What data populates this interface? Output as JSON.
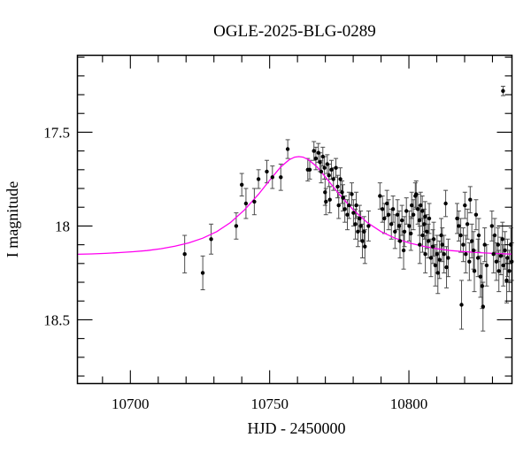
{
  "figure": {
    "title": "OGLE-2025-BLG-0289"
  },
  "chart_data": {
    "type": "scatter",
    "title": "OGLE-2025-BLG-0289",
    "xlabel": "HJD - 2450000",
    "ylabel": "I magnitude",
    "xlim": [
      10681,
      10837
    ],
    "ylim": [
      17.09,
      18.84
    ],
    "y_axis_direction": "inverted-magnitude",
    "grid": false,
    "legend": null,
    "x_ticks_major": [
      10700,
      10750,
      10800
    ],
    "x_ticks_minor": [
      10690,
      10710,
      10720,
      10730,
      10740,
      10760,
      10770,
      10780,
      10790,
      10810,
      10820,
      10830
    ],
    "y_ticks_major": [
      17.5,
      18,
      18.5
    ],
    "y_ticks_minor": [
      17.1,
      17.2,
      17.3,
      17.4,
      17.6,
      17.7,
      17.8,
      17.9,
      18.1,
      18.2,
      18.3,
      18.4,
      18.6,
      18.7,
      18.8
    ],
    "colors": {
      "frame": "#000000",
      "marker": "#000000",
      "error_bar": "#4d4d4d",
      "model_curve": "#ff00f0",
      "background": "#ffffff",
      "text": "#000000"
    },
    "model": {
      "name": "point-lens fit",
      "baseline_mag": 18.16,
      "peak_mag": 17.63,
      "t0": 10760.5
    },
    "model_curve": [
      [
        10681,
        18.151
      ],
      [
        10686,
        18.149
      ],
      [
        10691,
        18.146
      ],
      [
        10696,
        18.142
      ],
      [
        10701,
        18.137
      ],
      [
        10706,
        18.131
      ],
      [
        10711,
        18.121
      ],
      [
        10716,
        18.108
      ],
      [
        10721,
        18.09
      ],
      [
        10726,
        18.065
      ],
      [
        10731,
        18.03
      ],
      [
        10736,
        17.981
      ],
      [
        10741,
        17.914
      ],
      [
        10746,
        17.831
      ],
      [
        10751,
        17.738
      ],
      [
        10754,
        17.685
      ],
      [
        10757,
        17.647
      ],
      [
        10759,
        17.633
      ],
      [
        10760.5,
        17.63
      ],
      [
        10762,
        17.633
      ],
      [
        10764,
        17.647
      ],
      [
        10767,
        17.685
      ],
      [
        10770,
        17.738
      ],
      [
        10775,
        17.831
      ],
      [
        10780,
        17.914
      ],
      [
        10785,
        17.981
      ],
      [
        10790,
        18.03
      ],
      [
        10795,
        18.065
      ],
      [
        10800,
        18.09
      ],
      [
        10805,
        18.108
      ],
      [
        10810,
        18.121
      ],
      [
        10815,
        18.131
      ],
      [
        10820,
        18.137
      ],
      [
        10825,
        18.142
      ],
      [
        10830,
        18.146
      ],
      [
        10835,
        18.149
      ],
      [
        10837,
        18.15
      ]
    ],
    "points": [
      [
        10719.5,
        18.15,
        0.1
      ],
      [
        10726.0,
        18.25,
        0.09
      ],
      [
        10729.0,
        18.07,
        0.08
      ],
      [
        10738.0,
        18.0,
        0.07
      ],
      [
        10740.0,
        17.78,
        0.06
      ],
      [
        10741.5,
        17.88,
        0.08
      ],
      [
        10744.5,
        17.87,
        0.07
      ],
      [
        10746.0,
        17.75,
        0.05
      ],
      [
        10749.0,
        17.71,
        0.06
      ],
      [
        10751.0,
        17.74,
        0.06
      ],
      [
        10754.0,
        17.74,
        0.07
      ],
      [
        10756.5,
        17.59,
        0.05
      ],
      [
        10763.7,
        17.7,
        0.06
      ],
      [
        10764.4,
        17.7,
        0.05
      ],
      [
        10765.9,
        17.6,
        0.05
      ],
      [
        10766.6,
        17.64,
        0.06
      ],
      [
        10767.5,
        17.61,
        0.05
      ],
      [
        10768.1,
        17.66,
        0.05
      ],
      [
        10768.5,
        17.71,
        0.06
      ],
      [
        10769.1,
        17.63,
        0.05
      ],
      [
        10769.7,
        17.69,
        0.06
      ],
      [
        10769.9,
        17.82,
        0.07
      ],
      [
        10770.2,
        17.87,
        0.07
      ],
      [
        10770.7,
        17.67,
        0.05
      ],
      [
        10771.3,
        17.73,
        0.06
      ],
      [
        10771.6,
        17.86,
        0.07
      ],
      [
        10772.2,
        17.7,
        0.05
      ],
      [
        10772.9,
        17.75,
        0.06
      ],
      [
        10773.8,
        17.69,
        0.05
      ],
      [
        10774.4,
        17.79,
        0.06
      ],
      [
        10774.8,
        17.89,
        0.07
      ],
      [
        10775.4,
        17.75,
        0.06
      ],
      [
        10776.0,
        17.82,
        0.06
      ],
      [
        10776.3,
        17.85,
        0.07
      ],
      [
        10777.0,
        17.91,
        0.07
      ],
      [
        10777.9,
        17.94,
        0.08
      ],
      [
        10778.5,
        17.89,
        0.07
      ],
      [
        10779.5,
        17.83,
        0.06
      ],
      [
        10780.1,
        17.93,
        0.07
      ],
      [
        10780.8,
        17.99,
        0.08
      ],
      [
        10781.1,
        17.89,
        0.07
      ],
      [
        10781.7,
        18.03,
        0.08
      ],
      [
        10782.3,
        17.96,
        0.07
      ],
      [
        10782.7,
        18.0,
        0.08
      ],
      [
        10783.3,
        18.08,
        0.09
      ],
      [
        10783.9,
        18.03,
        0.08
      ],
      [
        10784.2,
        18.11,
        0.09
      ],
      [
        10785.5,
        18.0,
        0.08
      ],
      [
        10789.6,
        17.84,
        0.07
      ],
      [
        10790.5,
        17.91,
        0.07
      ],
      [
        10791.2,
        17.96,
        0.08
      ],
      [
        10792.1,
        17.88,
        0.07
      ],
      [
        10792.7,
        17.94,
        0.08
      ],
      [
        10793.7,
        17.99,
        0.08
      ],
      [
        10794.3,
        17.91,
        0.07
      ],
      [
        10795.0,
        18.03,
        0.09
      ],
      [
        10795.9,
        17.94,
        0.08
      ],
      [
        10796.5,
        18.0,
        0.08
      ],
      [
        10796.8,
        18.08,
        0.09
      ],
      [
        10797.5,
        17.97,
        0.08
      ],
      [
        10798.1,
        18.13,
        0.1
      ],
      [
        10798.4,
        18.03,
        0.08
      ],
      [
        10799.1,
        17.92,
        0.07
      ],
      [
        10800.1,
        18.0,
        0.08
      ],
      [
        10800.7,
        18.04,
        0.09
      ],
      [
        10801.0,
        17.89,
        0.07
      ],
      [
        10801.6,
        17.94,
        0.08
      ],
      [
        10802.3,
        17.84,
        0.07
      ],
      [
        10802.6,
        17.83,
        0.07
      ],
      [
        10803.2,
        17.91,
        0.08
      ],
      [
        10803.8,
        17.97,
        0.08
      ],
      [
        10803.9,
        18.1,
        0.1
      ],
      [
        10804.2,
        17.89,
        0.07
      ],
      [
        10804.8,
        17.92,
        0.08
      ],
      [
        10804.9,
        18.05,
        0.09
      ],
      [
        10805.5,
        17.99,
        0.08
      ],
      [
        10805.8,
        17.95,
        0.08
      ],
      [
        10805.9,
        18.15,
        0.1
      ],
      [
        10806.4,
        18.03,
        0.09
      ],
      [
        10807.0,
        18.08,
        0.09
      ],
      [
        10807.3,
        17.96,
        0.08
      ],
      [
        10807.9,
        18.17,
        0.1
      ],
      [
        10808.6,
        18.11,
        0.09
      ],
      [
        10808.9,
        18.07,
        0.09
      ],
      [
        10809.5,
        18.21,
        0.11
      ],
      [
        10810.1,
        18.15,
        0.1
      ],
      [
        10810.4,
        18.25,
        0.11
      ],
      [
        10811.0,
        18.18,
        0.1
      ],
      [
        10811.6,
        18.05,
        0.09
      ],
      [
        10812.0,
        18.1,
        0.09
      ],
      [
        10812.6,
        18.15,
        0.1
      ],
      [
        10813.2,
        17.88,
        0.07
      ],
      [
        10813.5,
        18.22,
        0.11
      ],
      [
        10814.1,
        18.17,
        0.1
      ],
      [
        10817.3,
        17.96,
        0.08
      ],
      [
        10817.9,
        18.0,
        0.08
      ],
      [
        10818.6,
        18.05,
        0.09
      ],
      [
        10818.9,
        18.42,
        0.13
      ],
      [
        10819.5,
        18.1,
        0.09
      ],
      [
        10820.1,
        17.89,
        0.07
      ],
      [
        10820.4,
        18.15,
        0.1
      ],
      [
        10821.0,
        17.99,
        0.08
      ],
      [
        10821.7,
        18.19,
        0.1
      ],
      [
        10822.0,
        17.86,
        0.07
      ],
      [
        10822.6,
        18.08,
        0.09
      ],
      [
        10823.2,
        18.13,
        0.1
      ],
      [
        10823.5,
        18.24,
        0.11
      ],
      [
        10824.1,
        17.94,
        0.08
      ],
      [
        10824.8,
        18.17,
        0.1
      ],
      [
        10825.1,
        18.05,
        0.09
      ],
      [
        10825.7,
        18.27,
        0.11
      ],
      [
        10826.3,
        18.32,
        0.12
      ],
      [
        10826.6,
        18.43,
        0.13
      ],
      [
        10827.2,
        18.1,
        0.09
      ],
      [
        10827.9,
        18.21,
        0.11
      ],
      [
        10829.8,
        18.0,
        0.08
      ],
      [
        10830.4,
        18.15,
        0.1
      ],
      [
        10830.8,
        18.05,
        0.09
      ],
      [
        10831.4,
        18.19,
        0.1
      ],
      [
        10832.0,
        18.1,
        0.09
      ],
      [
        10832.3,
        18.24,
        0.11
      ],
      [
        10833.0,
        18.16,
        0.1
      ],
      [
        10833.6,
        18.07,
        0.09
      ],
      [
        10833.8,
        17.28,
        0.025
      ],
      [
        10833.9,
        18.21,
        0.11
      ],
      [
        10834.5,
        18.13,
        0.1
      ],
      [
        10835.1,
        18.29,
        0.12
      ],
      [
        10835.4,
        18.17,
        0.1
      ],
      [
        10836.0,
        18.24,
        0.11
      ],
      [
        10836.6,
        18.1,
        0.09
      ],
      [
        10836.9,
        18.19,
        0.1
      ]
    ]
  }
}
